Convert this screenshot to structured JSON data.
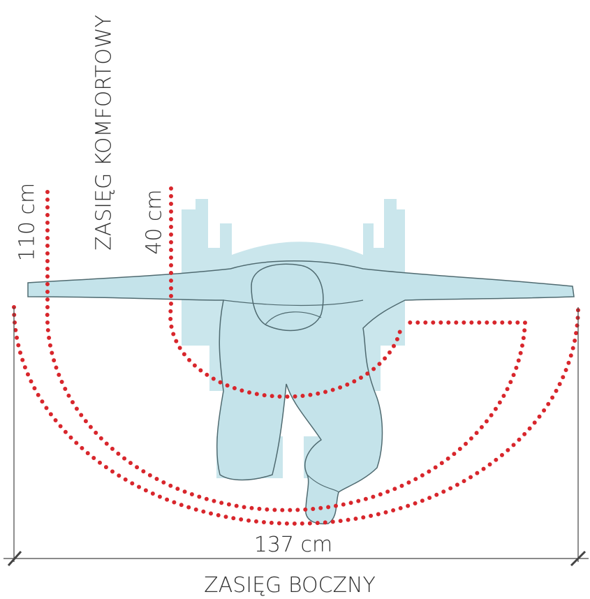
{
  "title": "ZASIĘG KOMFORTOWY",
  "labels": {
    "outer_reach": "110 cm",
    "inner_reach": "40 cm",
    "width": "137 cm"
  },
  "caption": "ZASIĘG BOCZNY"
}
